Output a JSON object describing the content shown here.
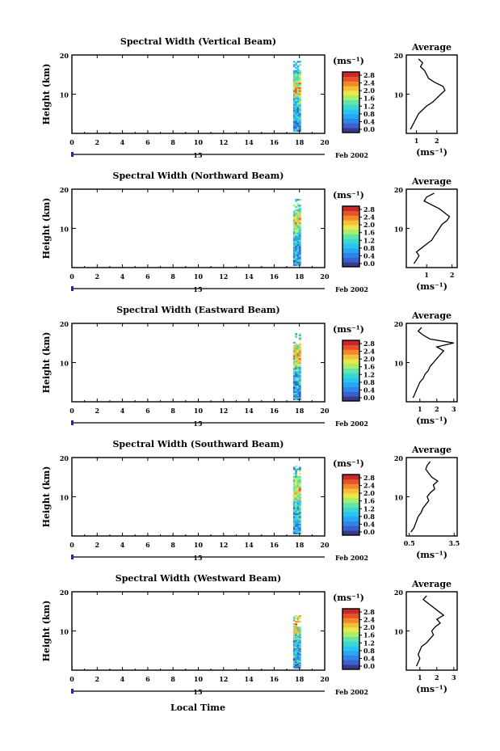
{
  "common": {
    "xlabel": "Local Time",
    "x_ticks": [
      "0",
      "2",
      "4",
      "6",
      "8",
      "10",
      "12",
      "14",
      "16",
      "18",
      "20"
    ],
    "xlim": [
      0,
      20
    ],
    "date_day": "15",
    "date_month": "Feb 2002",
    "ylabel": "Height (km)",
    "y_ticks": [
      "20",
      "10"
    ],
    "ylim": [
      0,
      20
    ],
    "cbar_unit": "(ms⁻¹)",
    "cbar_ticks": [
      "2.8",
      "2.4",
      "2.0",
      "1.6",
      "1.2",
      "0.8",
      "0.4",
      "0.0"
    ],
    "avg_title": "Average",
    "avg_unit": "(ms⁻¹)",
    "colormap": [
      "#3a3a8c",
      "#3b5fd0",
      "#2f86e8",
      "#27a6f2",
      "#29c4f0",
      "#3bd8d0",
      "#5fe6a8",
      "#a8ee6a",
      "#e8e84a",
      "#f6bf3a",
      "#f28a2c",
      "#e8522a",
      "#c8282a"
    ]
  },
  "chart_data": [
    {
      "type": "heatmap",
      "title": "Spectral Width (Vertical Beam)",
      "data_time_range": [
        17.5,
        18.1
      ],
      "data_height_range": [
        0.5,
        18.5
      ],
      "profile": {
        "x_ticks": [
          "1",
          "2"
        ],
        "xlim": [
          0.5,
          3.0
        ],
        "height_km": [
          1,
          2,
          3,
          4,
          5,
          6,
          7,
          8,
          9,
          10,
          11,
          12,
          13,
          14,
          15,
          16,
          17,
          18,
          19
        ],
        "avg_width_ms": [
          0.7,
          0.8,
          0.9,
          1.0,
          1.1,
          1.3,
          1.5,
          1.8,
          2.0,
          2.2,
          2.4,
          2.3,
          1.9,
          1.6,
          1.5,
          1.4,
          1.2,
          1.3,
          1.1
        ]
      }
    },
    {
      "type": "heatmap",
      "title": "Spectral Width (Northward Beam)",
      "data_time_range": [
        17.5,
        18.1
      ],
      "data_height_range": [
        0.5,
        17.5
      ],
      "profile": {
        "x_ticks": [
          "1",
          "2"
        ],
        "xlim": [
          0.2,
          2.2
        ],
        "height_km": [
          1,
          2,
          3,
          4,
          5,
          6,
          7,
          8,
          9,
          10,
          11,
          12,
          13,
          14,
          15,
          16,
          17,
          18,
          19
        ],
        "avg_width_ms": [
          0.5,
          0.6,
          0.7,
          0.6,
          0.8,
          1.0,
          1.2,
          1.3,
          1.4,
          1.5,
          1.6,
          1.8,
          1.9,
          1.7,
          1.5,
          1.2,
          0.9,
          1.0,
          1.3
        ]
      }
    },
    {
      "type": "heatmap",
      "title": "Spectral Width (Eastward Beam)",
      "data_time_range": [
        17.5,
        18.1
      ],
      "data_height_range": [
        0.5,
        17.5
      ],
      "profile": {
        "x_ticks": [
          "1",
          "2",
          "3"
        ],
        "xlim": [
          0.2,
          3.2
        ],
        "height_km": [
          1,
          2,
          3,
          4,
          5,
          6,
          7,
          8,
          9,
          10,
          11,
          12,
          13,
          14,
          15,
          16,
          17,
          18,
          19
        ],
        "avg_width_ms": [
          0.6,
          0.7,
          0.8,
          0.9,
          1.0,
          1.2,
          1.3,
          1.5,
          1.6,
          1.8,
          2.0,
          2.2,
          2.4,
          2.0,
          3.0,
          1.6,
          1.2,
          0.9,
          1.1
        ]
      }
    },
    {
      "type": "heatmap",
      "title": "Spectral Width (Southward Beam)",
      "data_time_range": [
        17.5,
        18.1
      ],
      "data_height_range": [
        0.5,
        18.0
      ],
      "profile": {
        "x_ticks": [
          "0.5",
          "3.5"
        ],
        "xlim": [
          0.3,
          3.7
        ],
        "height_km": [
          1,
          2,
          3,
          4,
          5,
          6,
          7,
          8,
          9,
          10,
          11,
          12,
          13,
          14,
          15,
          16,
          17,
          18,
          19
        ],
        "avg_width_ms": [
          0.6,
          0.8,
          0.9,
          1.0,
          1.1,
          1.3,
          1.4,
          1.6,
          1.8,
          1.7,
          1.9,
          2.2,
          2.1,
          2.4,
          2.0,
          1.8,
          1.6,
          1.7,
          1.9
        ]
      }
    },
    {
      "type": "heatmap",
      "title": "Spectral Width (Westward Beam)",
      "data_time_range": [
        17.5,
        18.1
      ],
      "data_height_range": [
        0.5,
        14.0
      ],
      "profile": {
        "x_ticks": [
          "1",
          "2",
          "3"
        ],
        "xlim": [
          0.2,
          3.2
        ],
        "height_km": [
          1,
          2,
          3,
          4,
          5,
          6,
          7,
          8,
          9,
          10,
          11,
          12,
          13,
          14,
          18,
          19
        ],
        "avg_width_ms": [
          0.8,
          0.9,
          1.0,
          0.9,
          1.0,
          1.1,
          1.4,
          1.6,
          1.8,
          1.7,
          1.9,
          2.2,
          2.0,
          2.4,
          1.2,
          1.4
        ]
      }
    }
  ]
}
